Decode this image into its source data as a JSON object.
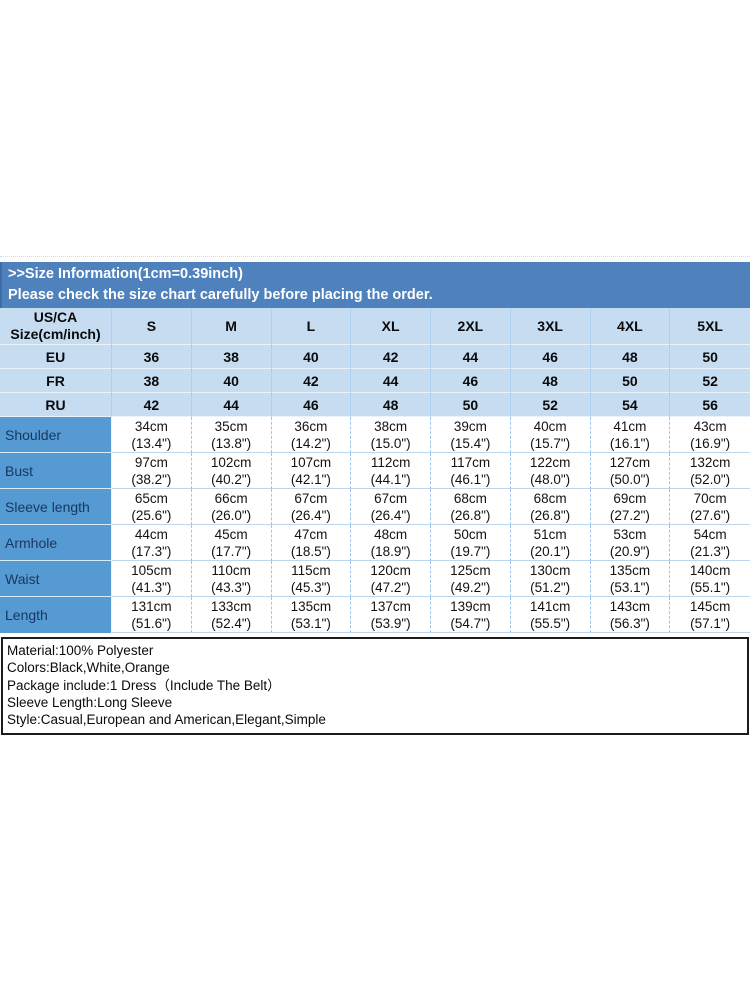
{
  "banner": {
    "title": ">>Size Information(1cm=0.39inch)",
    "subtitle": "Please check the size chart carefully before placing the order.",
    "background": "#4f81bd",
    "text_color": "#ffffff"
  },
  "size_table": {
    "corner": {
      "line1": "US/CA",
      "line2": "Size(cm/inch)"
    },
    "columns": [
      "S",
      "M",
      "L",
      "XL",
      "2XL",
      "3XL",
      "4XL",
      "5XL"
    ],
    "region_rows": [
      {
        "label": "EU",
        "values": [
          "36",
          "38",
          "40",
          "42",
          "44",
          "46",
          "48",
          "50"
        ]
      },
      {
        "label": "FR",
        "values": [
          "38",
          "40",
          "42",
          "44",
          "46",
          "48",
          "50",
          "52"
        ]
      },
      {
        "label": "RU",
        "values": [
          "42",
          "44",
          "46",
          "48",
          "50",
          "52",
          "54",
          "56"
        ]
      }
    ],
    "measurement_rows": [
      {
        "label": "Shoulder",
        "cm": [
          "34cm",
          "35cm",
          "36cm",
          "38cm",
          "39cm",
          "40cm",
          "41cm",
          "43cm"
        ],
        "inch": [
          "(13.4\")",
          "(13.8\")",
          "(14.2\")",
          "(15.0\")",
          "(15.4\")",
          "(15.7\")",
          "(16.1\")",
          "(16.9\")"
        ]
      },
      {
        "label": "Bust",
        "cm": [
          "97cm",
          "102cm",
          "107cm",
          "112cm",
          "117cm",
          "122cm",
          "127cm",
          "132cm"
        ],
        "inch": [
          "(38.2\")",
          "(40.2\")",
          "(42.1\")",
          "(44.1\")",
          "(46.1\")",
          "(48.0\")",
          "(50.0\")",
          "(52.0\")"
        ]
      },
      {
        "label": "Sleeve length",
        "cm": [
          "65cm",
          "66cm",
          "67cm",
          "67cm",
          "68cm",
          "68cm",
          "69cm",
          "70cm"
        ],
        "inch": [
          "(25.6\")",
          "(26.0\")",
          "(26.4\")",
          "(26.4\")",
          "(26.8\")",
          "(26.8\")",
          "(27.2\")",
          "(27.6\")"
        ]
      },
      {
        "label": "Armhole",
        "cm": [
          "44cm",
          "45cm",
          "47cm",
          "48cm",
          "50cm",
          "51cm",
          "53cm",
          "54cm"
        ],
        "inch": [
          "(17.3\")",
          "(17.7\")",
          "(18.5\")",
          "(18.9\")",
          "(19.7\")",
          "(20.1\")",
          "(20.9\")",
          "(21.3\")"
        ]
      },
      {
        "label": "Waist",
        "cm": [
          "105cm",
          "110cm",
          "115cm",
          "120cm",
          "125cm",
          "130cm",
          "135cm",
          "140cm"
        ],
        "inch": [
          "(41.3\")",
          "(43.3\")",
          "(45.3\")",
          "(47.2\")",
          "(49.2\")",
          "(51.2\")",
          "(53.1\")",
          "(55.1\")"
        ]
      },
      {
        "label": "Length",
        "cm": [
          "131cm",
          "133cm",
          "135cm",
          "137cm",
          "139cm",
          "141cm",
          "143cm",
          "145cm"
        ],
        "inch": [
          "(51.6\")",
          "(52.4\")",
          "(53.1\")",
          "(53.9\")",
          "(54.7\")",
          "(55.5\")",
          "(56.3\")",
          "(57.1\")"
        ]
      }
    ],
    "colors": {
      "light_row_bg": "#c6dcf1",
      "label_column_bg": "#569ad3",
      "label_text": "#17375e",
      "value_cell_bg": "#ffffff",
      "grid_line": "#9fc5e8"
    }
  },
  "details": {
    "lines": [
      "Material:100% Polyester",
      "Colors:Black,White,Orange",
      "Package include:1 Dress（Include The Belt）",
      "Sleeve Length:Long Sleeve",
      "Style:Casual,European and American,Elegant,Simple"
    ]
  }
}
